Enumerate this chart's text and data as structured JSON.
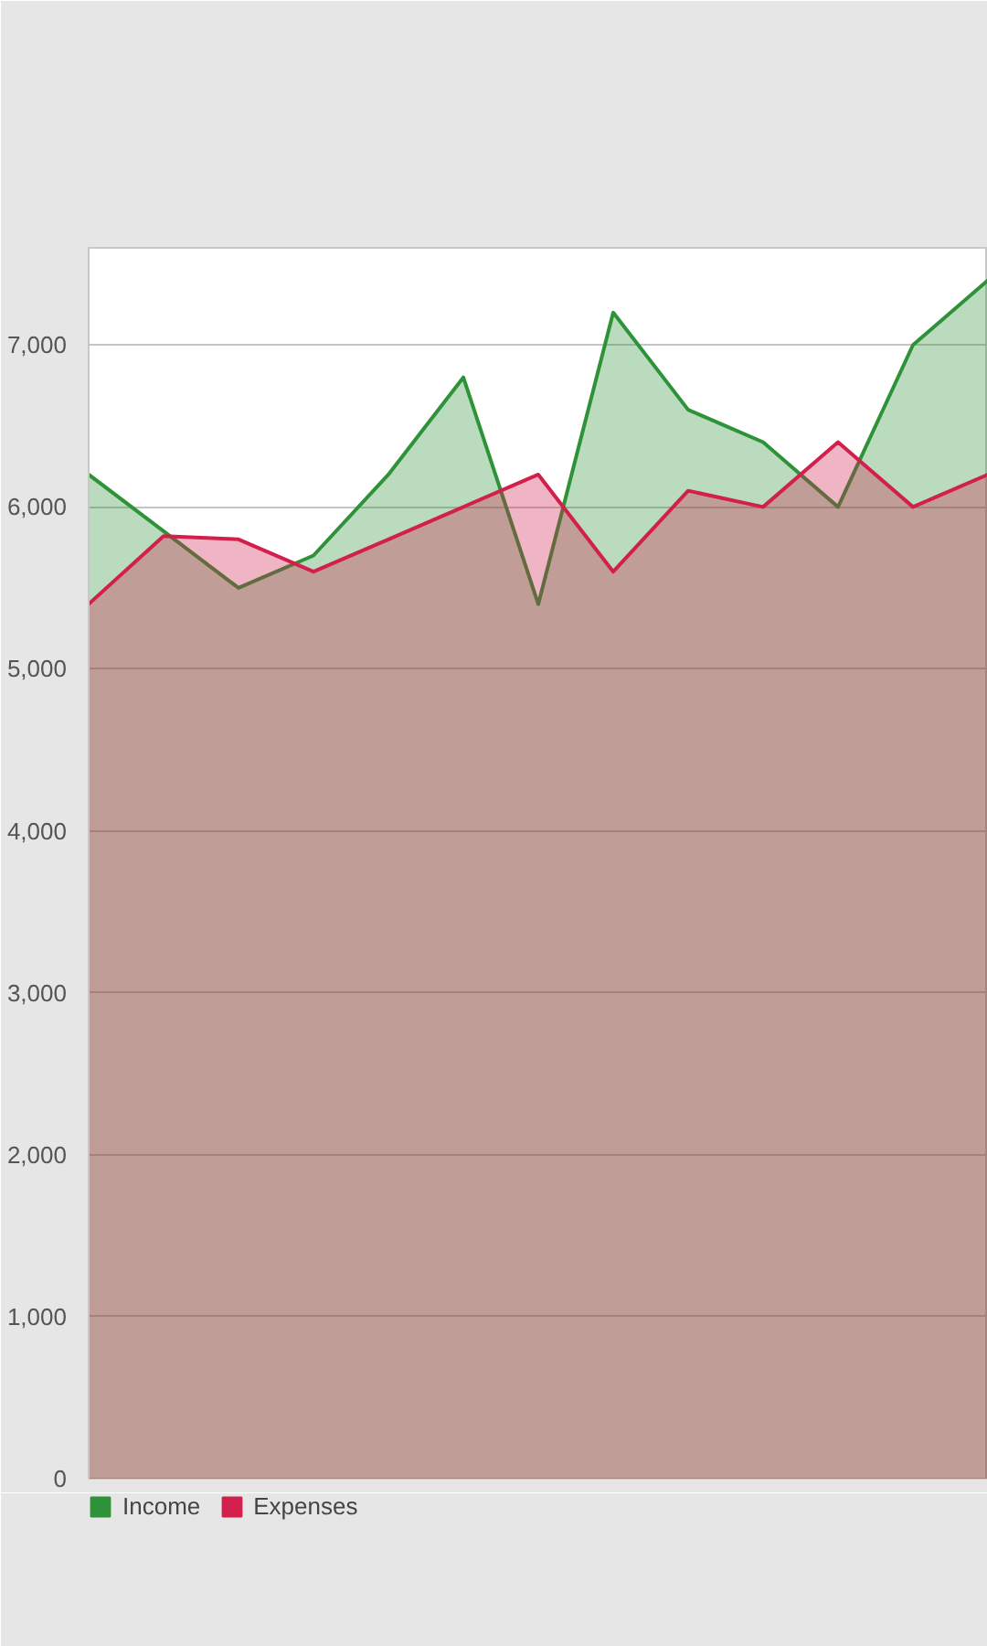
{
  "chart_data": {
    "type": "area",
    "categories": [
      null,
      null,
      null,
      null,
      null,
      null,
      null,
      null,
      null,
      null,
      null,
      null,
      null
    ],
    "series": [
      {
        "name": "Income",
        "color": "#2e9338",
        "values": [
          6200,
          5850,
          5500,
          5700,
          6200,
          6800,
          5400,
          7200,
          6600,
          6400,
          6000,
          7000,
          7400
        ]
      },
      {
        "name": "Expenses",
        "color": "#d21f4b",
        "values": [
          5400,
          5820,
          5800,
          5600,
          5800,
          6000,
          6200,
          5600,
          6100,
          6000,
          6400,
          6000,
          6200
        ]
      }
    ],
    "ylim": [
      0,
      7600
    ],
    "yticks": [
      0,
      {
        "value": 1000,
        "label": "1,000"
      },
      {
        "value": 2000,
        "label": "2,000"
      },
      {
        "value": 3000,
        "label": "3,000"
      },
      {
        "value": 4000,
        "label": "4,000"
      },
      {
        "value": 5000,
        "label": "5,000"
      },
      {
        "value": 6000,
        "label": "6,000"
      },
      {
        "value": 7000,
        "label": "7,000"
      }
    ],
    "grid": "y",
    "legend": "bottom",
    "tick_labels": "y"
  }
}
